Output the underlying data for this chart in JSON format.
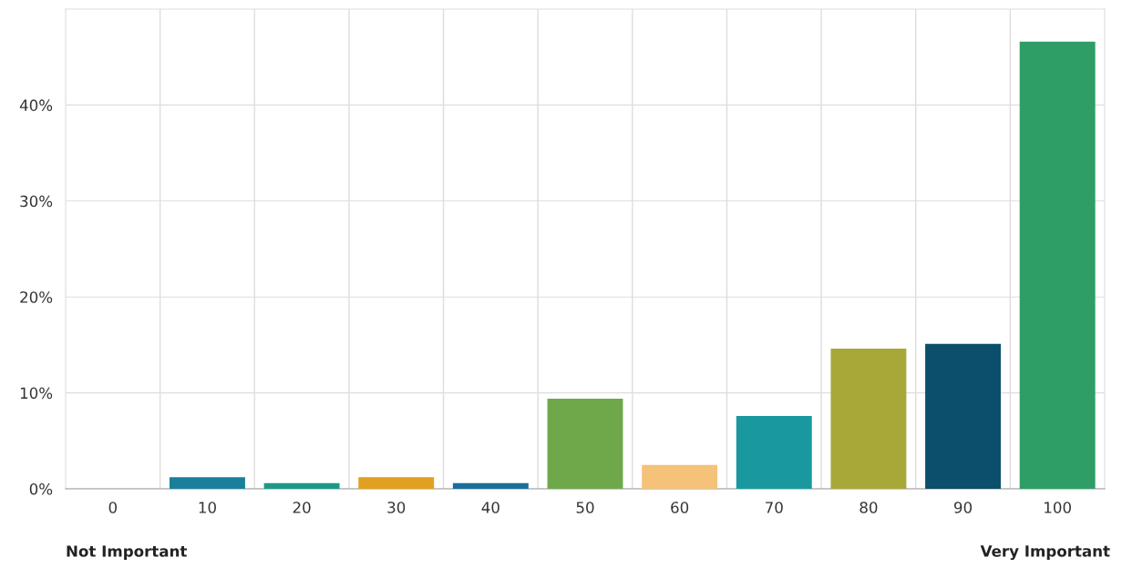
{
  "chart_data": {
    "type": "bar",
    "categories": [
      "0",
      "10",
      "20",
      "30",
      "40",
      "50",
      "60",
      "70",
      "80",
      "90",
      "100"
    ],
    "values": [
      0,
      1.2,
      0.6,
      1.2,
      0.6,
      9.4,
      2.5,
      7.6,
      14.6,
      15.1,
      46.6
    ],
    "colors": [
      "#1a7f9a",
      "#1a7f9a",
      "#1a9a86",
      "#e0a020",
      "#1a6f9a",
      "#6fa84a",
      "#f5c27a",
      "#1a98a0",
      "#a8a838",
      "#0b4f6c",
      "#2e9e66"
    ],
    "ylim": [
      0,
      50
    ],
    "yticks": [
      {
        "value": 0,
        "label": "0%"
      },
      {
        "value": 10,
        "label": "10%"
      },
      {
        "value": 20,
        "label": "20%"
      },
      {
        "value": 30,
        "label": "30%"
      },
      {
        "value": 40,
        "label": "40%"
      }
    ],
    "grid": true,
    "annotations": [
      "Not Important",
      "Very Important"
    ]
  }
}
